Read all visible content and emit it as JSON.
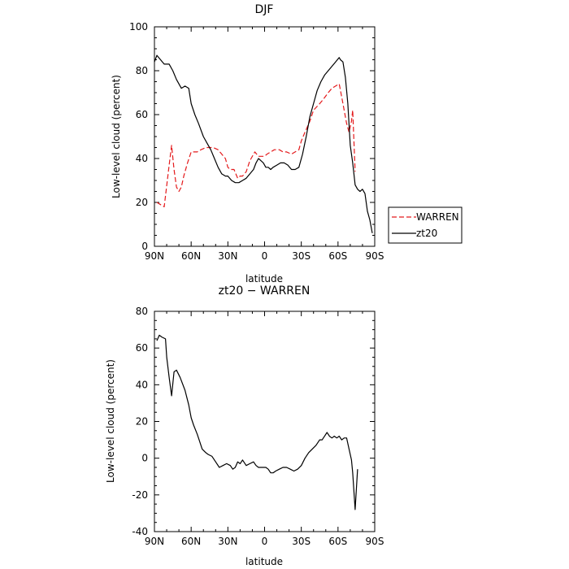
{
  "chart_data": [
    {
      "type": "line",
      "title": "DJF",
      "xlabel": "latitude",
      "ylabel": "Low-level cloud (percent)",
      "xlim": [
        90,
        -90
      ],
      "ylim": [
        0,
        100
      ],
      "x_ticks": [
        90,
        60,
        30,
        0,
        -30,
        -60,
        -90
      ],
      "x_tick_labels": [
        "90N",
        "60N",
        "30N",
        "0",
        "30S",
        "60S",
        "90S"
      ],
      "y_ticks": [
        0,
        20,
        40,
        60,
        80,
        100
      ],
      "legend": "outside-right",
      "series": [
        {
          "name": "WARREN",
          "color": "#e41a1c",
          "dash": "dashed",
          "x": [
            88,
            85,
            82,
            78,
            76,
            74,
            72,
            70,
            68,
            66,
            63,
            60,
            55,
            52,
            48,
            45,
            42,
            38,
            35,
            32,
            30,
            28,
            25,
            22,
            20,
            18,
            15,
            12,
            8,
            5,
            2,
            0,
            -2,
            -5,
            -8,
            -12,
            -15,
            -18,
            -22,
            -25,
            -28,
            -30,
            -33,
            -37,
            -40,
            -45,
            -48,
            -52,
            -55,
            -58,
            -61,
            -63,
            -65,
            -67,
            -69,
            -71,
            -72,
            -73,
            -74
          ],
          "y": [
            20,
            19,
            18,
            37,
            46,
            35,
            27,
            25,
            27,
            32,
            38,
            43,
            43,
            44,
            45,
            45,
            45,
            44,
            42,
            40,
            36,
            35,
            35,
            31,
            32,
            32,
            34,
            39,
            43,
            41,
            41,
            41,
            42,
            43,
            44,
            44,
            43,
            43,
            42,
            43,
            44,
            48,
            52,
            57,
            62,
            65,
            67,
            70,
            72,
            73,
            74,
            68,
            62,
            56,
            52,
            57,
            62,
            48,
            34
          ]
        },
        {
          "name": "zt20",
          "color": "#000000",
          "dash": "solid",
          "x": [
            90,
            88,
            85,
            82,
            80,
            78,
            75,
            72,
            70,
            68,
            65,
            62,
            60,
            57,
            54,
            50,
            47,
            44,
            41,
            38,
            35,
            32,
            30,
            27,
            24,
            21,
            18,
            15,
            12,
            9,
            7,
            5,
            3,
            1,
            -1,
            -3,
            -5,
            -7,
            -10,
            -13,
            -16,
            -19,
            -22,
            -25,
            -28,
            -31,
            -34,
            -37,
            -40,
            -43,
            -46,
            -49,
            -52,
            -55,
            -58,
            -61,
            -62,
            -64,
            -66,
            -68,
            -70,
            -72,
            -74,
            -76,
            -78,
            -80,
            -82,
            -84,
            -86,
            -88
          ],
          "y": [
            84,
            87,
            85,
            83,
            83,
            83,
            80,
            76,
            74,
            72,
            73,
            72,
            65,
            60,
            56,
            50,
            47,
            44,
            40,
            36,
            33,
            32,
            32,
            30,
            29,
            29,
            30,
            31,
            33,
            35,
            38,
            40,
            39,
            38,
            36,
            36,
            35,
            36,
            37,
            38,
            38,
            37,
            35,
            35,
            36,
            42,
            50,
            59,
            65,
            71,
            75,
            78,
            80,
            82,
            84,
            86,
            85,
            84,
            77,
            65,
            46,
            38,
            28,
            26,
            25,
            26,
            24,
            16,
            12,
            6
          ]
        }
      ]
    },
    {
      "type": "line",
      "title": "zt20 − WARREN",
      "xlabel": "latitude",
      "ylabel": "Low-level cloud (percent)",
      "xlim": [
        90,
        -90
      ],
      "ylim": [
        -40,
        80
      ],
      "x_ticks": [
        90,
        60,
        30,
        0,
        -30,
        -60,
        -90
      ],
      "x_tick_labels": [
        "90N",
        "60N",
        "30N",
        "0",
        "30S",
        "60S",
        "90S"
      ],
      "y_ticks": [
        -40,
        -20,
        0,
        20,
        40,
        60,
        80
      ],
      "series": [
        {
          "color": "#000000",
          "dash": "solid",
          "x": [
            88,
            86,
            84,
            81,
            80,
            78,
            76,
            74,
            72,
            69,
            65,
            62,
            60,
            58,
            55,
            53,
            51,
            48,
            46,
            43,
            40,
            37,
            34,
            31,
            28,
            26,
            24,
            22,
            20,
            18,
            15,
            12,
            9,
            7,
            5,
            3,
            1,
            -1,
            -3,
            -5,
            -7,
            -9,
            -12,
            -15,
            -18,
            -21,
            -24,
            -27,
            -30,
            -33,
            -36,
            -39,
            -42,
            -45,
            -47,
            -49,
            -51,
            -53,
            -55,
            -57,
            -59,
            -61,
            -63,
            -65,
            -67,
            -69,
            -71,
            -72,
            -74,
            -76
          ],
          "y": [
            64,
            67,
            66,
            65,
            55,
            44,
            34,
            47,
            48,
            44,
            37,
            29,
            22,
            18,
            13,
            9,
            5,
            3,
            2,
            1,
            -2,
            -5,
            -4,
            -3,
            -4,
            -6,
            -5,
            -2,
            -3,
            -1,
            -4,
            -3,
            -2,
            -4,
            -5,
            -5,
            -5,
            -5,
            -6,
            -8,
            -8,
            -7,
            -6,
            -5,
            -5,
            -6,
            -7,
            -6,
            -4,
            0,
            3,
            5,
            7,
            10,
            10,
            12,
            14,
            12,
            11,
            12,
            11,
            12,
            10,
            11,
            11,
            5,
            -1,
            -8,
            -28,
            -6
          ]
        }
      ]
    }
  ]
}
